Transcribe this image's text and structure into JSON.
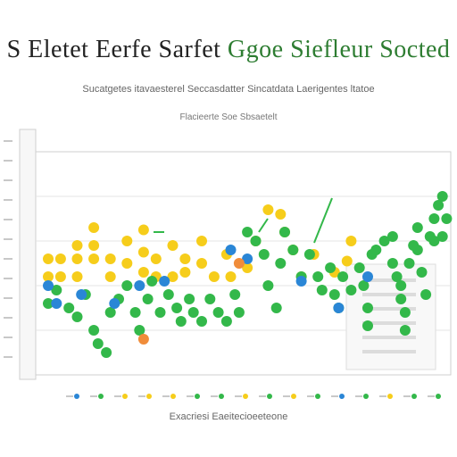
{
  "header": {
    "title_left": "S Eletet Eerfe Sarfet",
    "title_right": "Ggoe Siefleur Socted",
    "subtitle": "Sucatgetes itavaesterel Seccasdatter Sincatdata Laerigentes ltatoe",
    "caption": "Flacieerte Soe Sbsaetelt"
  },
  "footer": {
    "line_a": "Exacriesi Eaeitecioeeteone",
    "line_b": ""
  },
  "colors": {
    "green": "#33b84a",
    "yellow": "#f6cd1b",
    "blue": "#2a86d6",
    "orange": "#f08c3a",
    "grid": "#e6e6e6",
    "axis": "#cfcfcf"
  },
  "chart_data": {
    "type": "scatter",
    "title": "",
    "xlabel": "",
    "ylabel": "",
    "grid": true,
    "legend": "bottom",
    "xlim": [
      0,
      100
    ],
    "ylim": [
      0,
      100
    ],
    "series": [
      {
        "color_key": "yellow",
        "points": [
          [
            3,
            52
          ],
          [
            3,
            44
          ],
          [
            6,
            52
          ],
          [
            6,
            44
          ],
          [
            10,
            58
          ],
          [
            10,
            52
          ],
          [
            10,
            44
          ],
          [
            14,
            66
          ],
          [
            14,
            58
          ],
          [
            14,
            52
          ],
          [
            18,
            44
          ],
          [
            18,
            52
          ],
          [
            22,
            60
          ],
          [
            22,
            50
          ],
          [
            26,
            65
          ],
          [
            26,
            55
          ],
          [
            26,
            46
          ],
          [
            29,
            52
          ],
          [
            29,
            44
          ],
          [
            33,
            58
          ],
          [
            33,
            44
          ],
          [
            36,
            46
          ],
          [
            36,
            52
          ],
          [
            40,
            60
          ],
          [
            40,
            50
          ],
          [
            43,
            44
          ],
          [
            46,
            54
          ],
          [
            47,
            44
          ],
          [
            51,
            48
          ],
          [
            53,
            60
          ],
          [
            56,
            74
          ],
          [
            59,
            72
          ],
          [
            60,
            64
          ],
          [
            62,
            56
          ],
          [
            64,
            44
          ],
          [
            67,
            54
          ],
          [
            72,
            46
          ],
          [
            76,
            60
          ],
          [
            75,
            51
          ]
        ]
      },
      {
        "color_key": "green",
        "points": [
          [
            3,
            32
          ],
          [
            5,
            38
          ],
          [
            8,
            30
          ],
          [
            10,
            26
          ],
          [
            12,
            36
          ],
          [
            14,
            20
          ],
          [
            15,
            14
          ],
          [
            17,
            10
          ],
          [
            18,
            28
          ],
          [
            20,
            34
          ],
          [
            22,
            40
          ],
          [
            24,
            28
          ],
          [
            25,
            20
          ],
          [
            27,
            34
          ],
          [
            28,
            42
          ],
          [
            30,
            28
          ],
          [
            32,
            36
          ],
          [
            34,
            30
          ],
          [
            35,
            24
          ],
          [
            37,
            34
          ],
          [
            38,
            28
          ],
          [
            40,
            24
          ],
          [
            42,
            34
          ],
          [
            44,
            28
          ],
          [
            46,
            24
          ],
          [
            48,
            36
          ],
          [
            49,
            28
          ],
          [
            51,
            64
          ],
          [
            53,
            60
          ],
          [
            55,
            54
          ],
          [
            56,
            40
          ],
          [
            58,
            30
          ],
          [
            59,
            50
          ],
          [
            60,
            64
          ],
          [
            62,
            56
          ],
          [
            64,
            44
          ],
          [
            66,
            54
          ],
          [
            68,
            44
          ],
          [
            69,
            38
          ],
          [
            71,
            48
          ],
          [
            72,
            36
          ],
          [
            73,
            30
          ],
          [
            74,
            44
          ],
          [
            76,
            38
          ],
          [
            78,
            48
          ],
          [
            79,
            40
          ],
          [
            80,
            30
          ],
          [
            80,
            22
          ],
          [
            81,
            54
          ],
          [
            82,
            56
          ],
          [
            84,
            60
          ],
          [
            86,
            62
          ],
          [
            86,
            50
          ],
          [
            87,
            44
          ],
          [
            88,
            40
          ],
          [
            88,
            34
          ],
          [
            89,
            28
          ],
          [
            89,
            20
          ],
          [
            90,
            50
          ],
          [
            91,
            58
          ],
          [
            92,
            66
          ],
          [
            92,
            56
          ],
          [
            93,
            46
          ],
          [
            94,
            36
          ],
          [
            95,
            62
          ],
          [
            96,
            70
          ],
          [
            96,
            60
          ],
          [
            97,
            76
          ],
          [
            98,
            80
          ],
          [
            98,
            62
          ],
          [
            99,
            70
          ]
        ]
      },
      {
        "color_key": "blue",
        "points": [
          [
            3,
            40
          ],
          [
            5,
            32
          ],
          [
            11,
            36
          ],
          [
            19,
            32
          ],
          [
            25,
            40
          ],
          [
            31,
            42
          ],
          [
            47,
            56
          ],
          [
            51,
            52
          ],
          [
            64,
            42
          ],
          [
            73,
            30
          ],
          [
            80,
            44
          ]
        ]
      },
      {
        "color_key": "orange",
        "points": [
          [
            26,
            16
          ],
          [
            49,
            50
          ]
        ]
      }
    ]
  }
}
